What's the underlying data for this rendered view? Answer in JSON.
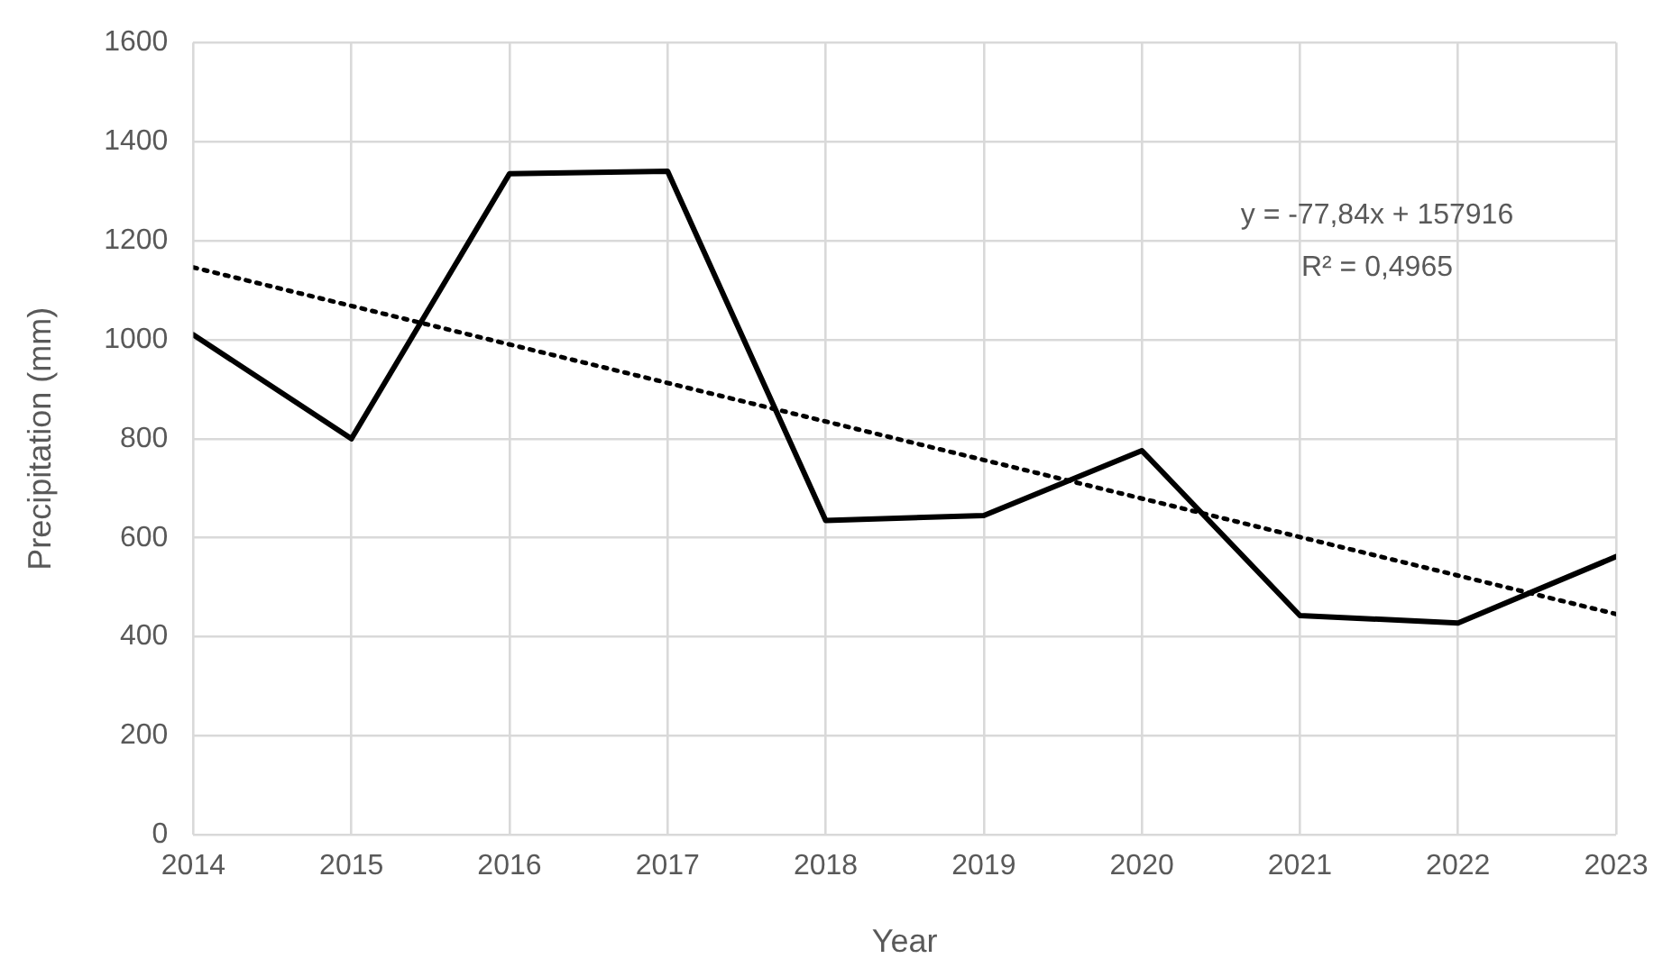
{
  "chart_data": {
    "type": "line",
    "xlabel": "Year",
    "ylabel": "Precipitation (mm)",
    "x": [
      2014,
      2015,
      2016,
      2017,
      2018,
      2019,
      2020,
      2021,
      2022,
      2023
    ],
    "series": [
      {
        "color": "#000000",
        "values": [
          1010,
          800,
          1335,
          1340,
          635,
          645,
          776,
          443,
          428,
          562
        ],
        "line_style": "solid"
      },
      {
        "type": "line",
        "color": "#000000",
        "x": [
          2014,
          2023
        ],
        "values": [
          1146,
          446
        ],
        "line_style": "dotted"
      }
    ],
    "xlim": [
      2014,
      2023
    ],
    "xticks": [
      2014,
      2015,
      2016,
      2017,
      2018,
      2019,
      2020,
      2021,
      2022,
      2023
    ],
    "ylim": [
      0,
      1600
    ],
    "yticks": [
      0,
      200,
      400,
      600,
      800,
      1000,
      1200,
      1400,
      1600
    ],
    "annotations": [
      "y = -77,84x + 157916",
      "R² = 0,4965"
    ],
    "grid": true,
    "legend": false,
    "marker": "none"
  }
}
